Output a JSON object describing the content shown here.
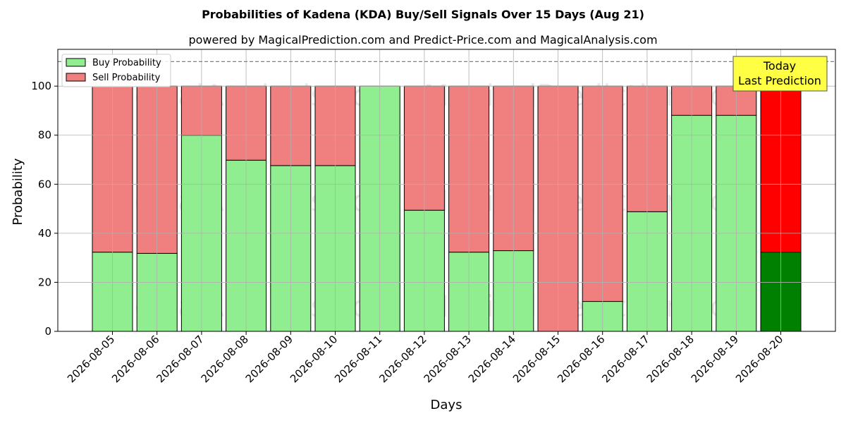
{
  "chart_data": {
    "type": "bar",
    "stacked": true,
    "title": "Probabilities of Kadena (KDA) Buy/Sell Signals Over 15 Days (Aug 21)",
    "subtitle": "powered by MagicalPrediction.com and Predict-Price.com and MagicalAnalysis.com",
    "xlabel": "Days",
    "ylabel": "Probability",
    "ylim": [
      0,
      115
    ],
    "yticks": [
      0,
      20,
      40,
      60,
      80,
      100
    ],
    "grid": true,
    "legend_position": "top-left",
    "reference_line": 110,
    "categories": [
      "2026-08-05",
      "2026-08-06",
      "2026-08-07",
      "2026-08-08",
      "2026-08-09",
      "2026-08-10",
      "2026-08-11",
      "2026-08-12",
      "2026-08-13",
      "2026-08-14",
      "2026-08-15",
      "2026-08-16",
      "2026-08-17",
      "2026-08-18",
      "2026-08-19",
      "2026-08-20"
    ],
    "series": [
      {
        "name": "Buy Probability",
        "color": "#90ee90",
        "values": [
          32.3,
          31.8,
          80.0,
          69.8,
          67.6,
          67.6,
          100.0,
          49.4,
          32.3,
          32.9,
          0.0,
          12.2,
          48.8,
          88.1,
          88.1,
          32.3
        ]
      },
      {
        "name": "Sell Probability",
        "color": "#f08080",
        "values": [
          67.7,
          68.2,
          20.0,
          30.2,
          32.4,
          32.4,
          0.0,
          50.6,
          67.7,
          67.1,
          100.0,
          87.8,
          51.2,
          11.9,
          11.9,
          67.7
        ]
      }
    ],
    "highlight": {
      "index": 15,
      "buy_color": "#008000",
      "sell_color": "#ff0000"
    },
    "annotation": {
      "lines": [
        "Today",
        "Last Prediction"
      ],
      "position": "top-right",
      "color": "#ffff44"
    },
    "watermarks": [
      "MagicalAnalysis.com",
      "MagicalPrediction.com"
    ]
  }
}
